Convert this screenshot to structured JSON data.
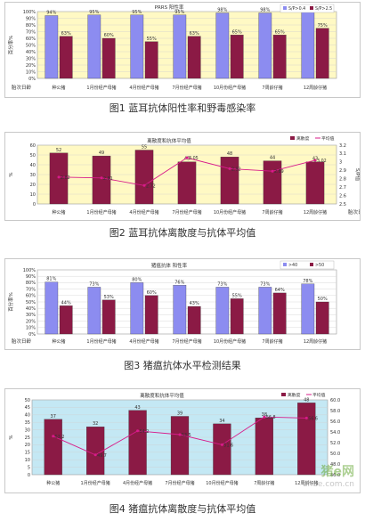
{
  "captions": {
    "fig1": "图1 蓝耳抗体阳性率和野毒感染率",
    "fig2": "图2 蓝耳抗体离散度与抗体平均值",
    "fig3": "图3 猪瘟抗体水平检测结果",
    "fig4": "图4 猪瘟抗体离散度与抗体平均值"
  },
  "watermark": {
    "text": "猪e网",
    "url": "zhue.com.cn"
  },
  "colors": {
    "blue": "#8c8cf0",
    "maroon": "#8b1a45",
    "magenta": "#d81b8a",
    "bg1": "#fff9c4",
    "bg4": "#c4e8f4"
  },
  "chart_data": [
    {
      "type": "bar",
      "title": "PRRS 阳性率",
      "ylabel": "百分率%",
      "xlabel": "胎次日龄",
      "categories": [
        "种公猪",
        "1月份经产母猪",
        "4月份经产母猪",
        "7月份经产母猪",
        "10月份经产母猪",
        "7周龄仔猪",
        "12周龄仔猪"
      ],
      "series": [
        {
          "name": "S/P>0.4",
          "values": [
            94,
            95,
            95,
            95,
            98,
            98,
            100
          ],
          "labels": [
            "94%",
            "95%",
            "95%",
            "95%",
            "98%",
            "98%",
            "100%"
          ]
        },
        {
          "name": "S/P>2.5",
          "values": [
            63,
            60,
            55,
            63,
            65,
            65,
            75
          ],
          "labels": [
            "63%",
            "60%",
            "55%",
            "63%",
            "65%",
            "65%",
            "75%"
          ]
        }
      ],
      "ylim": [
        0,
        100
      ],
      "yticks": [
        "0%",
        "10%",
        "20%",
        "30%",
        "40%",
        "50%",
        "60%",
        "70%",
        "80%",
        "90%",
        "100%"
      ]
    },
    {
      "type": "bar",
      "title": "离散度和抗体平均值",
      "ylabel": "%",
      "ylabel_right": "S/P值",
      "xlabel": "胎次日龄",
      "categories": [
        "种公猪",
        "1月份经产母猪",
        "4月份经产母猪",
        "7月份经产母猪",
        "10月份经产母猪",
        "7周龄仔猪",
        "12周龄仔猪"
      ],
      "series": [
        {
          "name": "离散度",
          "type": "bar",
          "values": [
            52,
            49,
            55,
            43,
            48,
            44,
            43
          ],
          "labels": [
            "52",
            "49",
            "55",
            "43",
            "48",
            "44",
            "43"
          ]
        },
        {
          "name": "平均值",
          "type": "line",
          "axis": "right",
          "values": [
            2.82,
            2.81,
            2.72,
            3.05,
            2.92,
            2.89,
            3.02
          ],
          "labels": [
            "2.82",
            "2.81",
            "2.72",
            "3.05",
            "2.92",
            "2.89",
            "3.02"
          ]
        }
      ],
      "ylim": [
        0,
        60
      ],
      "ylim_right": [
        2.5,
        3.2
      ],
      "yticks": [
        "0",
        "10",
        "20",
        "30",
        "40",
        "50",
        "60"
      ],
      "yticks_right": [
        "2.5",
        "2.6",
        "2.7",
        "2.8",
        "2.9",
        "3",
        "3.1",
        "3.2"
      ]
    },
    {
      "type": "bar",
      "title": "猪瘟抗体 阳性率",
      "ylabel": "百分率%",
      "xlabel": "胎次日龄",
      "categories": [
        "种公猪",
        "1月份经产母猪",
        "4月份经产母猪",
        "7月份经产母猪",
        "10月份经产母猪",
        "7周龄仔猪",
        "12周龄仔猪"
      ],
      "series": [
        {
          "name": ">40",
          "values": [
            81,
            73,
            80,
            76,
            73,
            73,
            78
          ],
          "labels": [
            "81%",
            "73%",
            "80%",
            "76%",
            "73%",
            "73%",
            "78%"
          ]
        },
        {
          "name": ">50",
          "values": [
            44,
            53,
            60,
            43,
            55,
            64,
            50
          ],
          "labels": [
            "44%",
            "53%",
            "60%",
            "43%",
            "55%",
            "64%",
            "50%"
          ]
        }
      ],
      "ylim": [
        0,
        100
      ],
      "yticks": [
        "0%",
        "10%",
        "20%",
        "30%",
        "40%",
        "50%",
        "60%",
        "70%",
        "80%",
        "90%",
        "100%"
      ]
    },
    {
      "type": "bar",
      "title": "离散度和抗体平均值",
      "ylabel": "%",
      "categories": [
        "种公猪",
        "1月份经产母猪",
        "4月份经产母猪",
        "7月份经产母猪",
        "10月份经产母猪",
        "7周龄仔猪",
        "12周龄仔猪"
      ],
      "series": [
        {
          "name": "离散度",
          "type": "bar",
          "values": [
            37,
            32,
            43,
            39,
            34,
            38,
            48
          ],
          "labels": [
            "37",
            "32",
            "43",
            "39",
            "34",
            "38",
            "48"
          ]
        },
        {
          "name": "平均值",
          "type": "line",
          "axis": "right",
          "values": [
            53.2,
            49.7,
            54.2,
            53.5,
            51.6,
            56.8,
            56.6
          ],
          "labels": [
            "53.2",
            "49.7",
            "54.2",
            "53.5",
            "51.6",
            "56.8",
            "56.6"
          ]
        }
      ],
      "ylim": [
        0,
        50
      ],
      "ylim_right": [
        46,
        60
      ],
      "yticks": [
        "0",
        "5",
        "10",
        "15",
        "20",
        "25",
        "30",
        "35",
        "40",
        "45",
        "50"
      ],
      "yticks_right": [
        "46.0",
        "48.0",
        "50.0",
        "52.0",
        "54.0",
        "56.0",
        "58.0",
        "60.0"
      ]
    }
  ]
}
